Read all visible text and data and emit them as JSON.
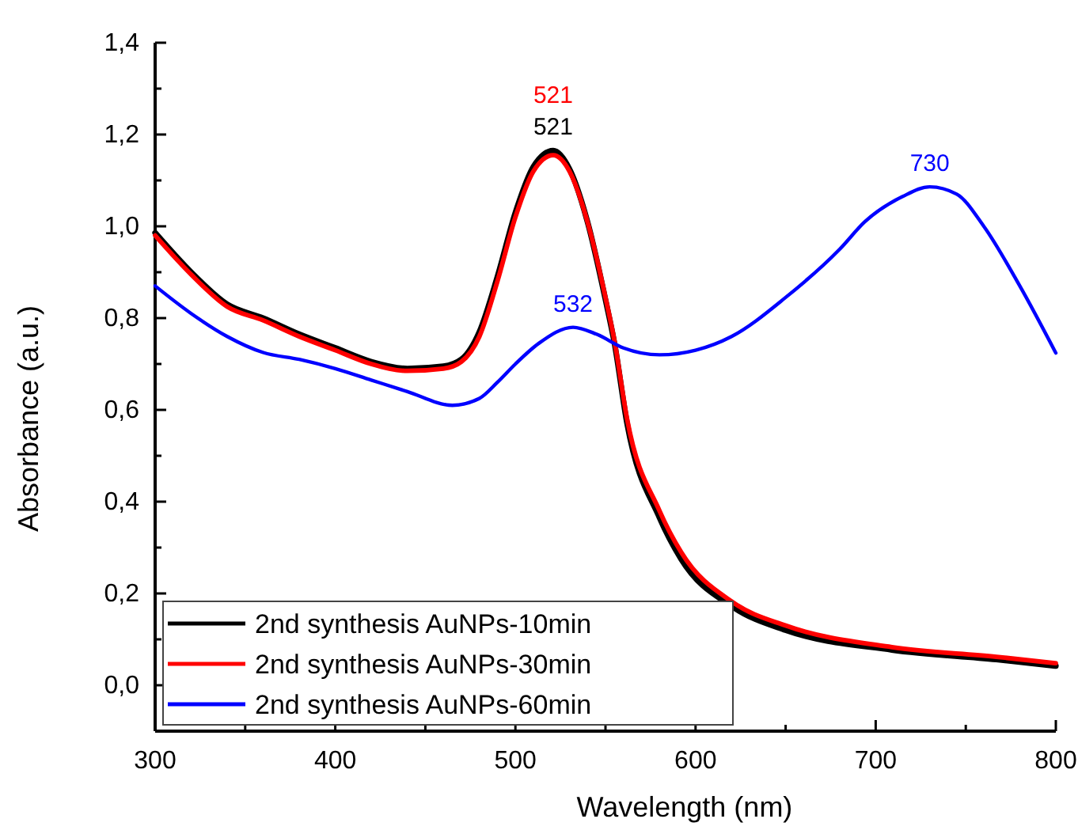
{
  "chart_data": {
    "type": "line",
    "xlabel": "Wavelength (nm)",
    "ylabel": "Absorbance (a.u.)",
    "xlim": [
      300,
      800
    ],
    "ylim": [
      -0.1,
      1.4
    ],
    "xticks": [
      300,
      {
        "value": 350,
        "label": null
      },
      400,
      {
        "value": 450,
        "label": null
      },
      500,
      {
        "value": 550,
        "label": null
      },
      600,
      {
        "value": 650,
        "label": null
      },
      700,
      {
        "value": 750,
        "label": null
      },
      800
    ],
    "yticks": [
      {
        "value": 0,
        "label": "0,0"
      },
      {
        "value": 0.1,
        "label": null
      },
      {
        "value": 0.2,
        "label": "0,2"
      },
      {
        "value": 0.3,
        "label": null
      },
      {
        "value": 0.4,
        "label": "0,4"
      },
      {
        "value": 0.5,
        "label": null
      },
      {
        "value": 0.6,
        "label": "0,6"
      },
      {
        "value": 0.7,
        "label": null
      },
      {
        "value": 0.8,
        "label": "0,8"
      },
      {
        "value": 0.9,
        "label": null
      },
      {
        "value": 1.0,
        "label": "1,0"
      },
      {
        "value": 1.1,
        "label": null
      },
      {
        "value": 1.2,
        "label": "1,2"
      },
      {
        "value": 1.3,
        "label": null
      },
      {
        "value": 1.4,
        "label": "1,4"
      }
    ],
    "grid": false,
    "legend": "bottom left",
    "line_style": "solid",
    "marker": "none",
    "series": [
      {
        "name": "2nd synthesis AuNPs-10min",
        "color": "#000000",
        "x": [
          300,
          320,
          340,
          360,
          380,
          400,
          420,
          440,
          460,
          470,
          480,
          490,
          500,
          510,
          521,
          530,
          540,
          550,
          555,
          562,
          580,
          592,
          621,
          650,
          709,
          767,
          800
        ],
        "values": [
          0.986,
          0.9,
          0.83,
          0.8,
          0.765,
          0.735,
          0.705,
          0.69,
          0.695,
          0.71,
          0.77,
          0.89,
          1.03,
          1.13,
          1.165,
          1.125,
          1.01,
          0.84,
          0.745,
          0.57,
          0.365,
          0.275,
          0.17,
          0.12,
          0.077,
          0.056,
          0.042
        ]
      },
      {
        "name": "2nd synthesis AuNPs-30min",
        "color": "#ff0000",
        "x": [
          300,
          320,
          340,
          360,
          380,
          400,
          420,
          440,
          460,
          470,
          480,
          490,
          500,
          510,
          521,
          530,
          540,
          550,
          555,
          562,
          580,
          592,
          621,
          650,
          709,
          767,
          800
        ],
        "values": [
          0.98,
          0.895,
          0.825,
          0.795,
          0.76,
          0.73,
          0.7,
          0.685,
          0.69,
          0.705,
          0.76,
          0.88,
          1.02,
          1.12,
          1.155,
          1.12,
          1.01,
          0.845,
          0.75,
          0.58,
          0.38,
          0.29,
          0.18,
          0.13,
          0.083,
          0.062,
          0.048
        ]
      },
      {
        "name": "2nd synthesis AuNPs-60min",
        "color": "#0000ff",
        "x": [
          300,
          320,
          340,
          360,
          380,
          400,
          420,
          440,
          465,
          480,
          490,
          500,
          513,
          532,
          545,
          560,
          580,
          600,
          620,
          650,
          680,
          694,
          715,
          730,
          745,
          760,
          780,
          800
        ],
        "values": [
          0.87,
          0.81,
          0.76,
          0.725,
          0.71,
          0.69,
          0.665,
          0.64,
          0.61,
          0.625,
          0.66,
          0.7,
          0.745,
          0.78,
          0.765,
          0.735,
          0.72,
          0.73,
          0.76,
          0.845,
          0.95,
          1.01,
          1.065,
          1.086,
          1.07,
          1.0,
          0.87,
          0.724
        ]
      }
    ],
    "annotations": [
      {
        "text": "521",
        "x": 521,
        "y": 1.155
      },
      {
        "text": "521",
        "x": 521,
        "y": 1.165
      },
      {
        "text": "532",
        "x": 532,
        "y": 0.78
      },
      {
        "text": "730",
        "x": 730,
        "y": 1.086
      }
    ]
  }
}
